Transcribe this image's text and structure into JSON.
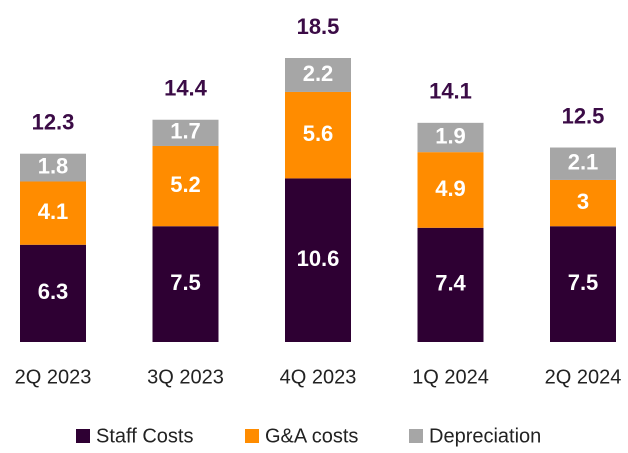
{
  "chart_data": {
    "type": "stacked_bar",
    "categories": [
      "2Q 2023",
      "3Q 2023",
      "4Q 2023",
      "1Q 2024",
      "2Q 2024"
    ],
    "series": [
      {
        "name": "Staff Costs",
        "color": "#2e0033",
        "values": [
          6.3,
          7.5,
          10.6,
          7.4,
          7.5
        ]
      },
      {
        "name": "G&A costs",
        "color": "#ff8c00",
        "values": [
          4.1,
          5.2,
          5.6,
          4.9,
          3.0
        ]
      },
      {
        "name": "Depreciation",
        "color": "#a6a6a6",
        "values": [
          1.8,
          1.7,
          2.2,
          1.9,
          2.1
        ]
      }
    ],
    "totals": [
      12.3,
      14.4,
      18.5,
      14.1,
      12.5
    ]
  }
}
